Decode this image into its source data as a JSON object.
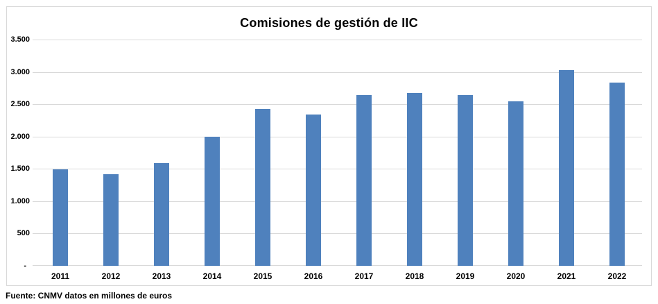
{
  "chart_data": {
    "type": "bar",
    "title": "Comisiones de gestión de IIC",
    "categories": [
      "2011",
      "2012",
      "2013",
      "2014",
      "2015",
      "2016",
      "2017",
      "2018",
      "2019",
      "2020",
      "2021",
      "2022"
    ],
    "values": [
      1490,
      1420,
      1590,
      2000,
      2430,
      2340,
      2645,
      2670,
      2640,
      2545,
      3025,
      2830
    ],
    "xlabel": "",
    "ylabel": "",
    "ylim": [
      0,
      3500
    ],
    "ytick_step": 500,
    "ytick_labels_top_to_bottom": [
      "3.500",
      "3.000",
      "2.500",
      "2.000",
      "1.500",
      "1.000",
      "500",
      "-"
    ],
    "grid": true,
    "legend": false,
    "bar_color": "#4F81BD",
    "gridline_color": "#D9D9D9",
    "frame_border_color": "#D9D9D9"
  },
  "footer": {
    "source": "Fuente: CNMV datos en millones de euros"
  }
}
